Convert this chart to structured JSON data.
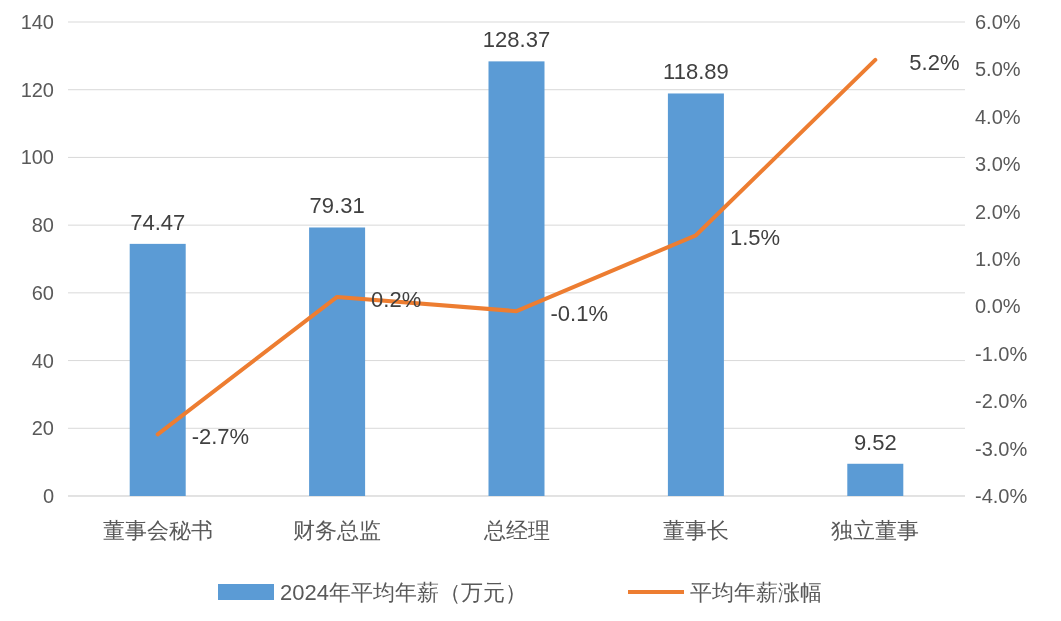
{
  "chart_data": {
    "type": "bar",
    "categories": [
      "董事会秘书",
      "财务总监",
      "总经理",
      "董事长",
      "独立董事"
    ],
    "series": [
      {
        "name": "2024年平均年薪（万元）",
        "color": "#5b9bd5",
        "values": [
          74.47,
          79.31,
          128.37,
          118.89,
          9.52
        ],
        "value_labels": [
          "74.47",
          "79.31",
          "128.37",
          "118.89",
          "9.52"
        ]
      },
      {
        "name": "平均年薪涨幅",
        "type": "line",
        "axis": "y2",
        "color": "#ed7d31",
        "values": [
          -2.7,
          0.2,
          -0.1,
          1.5,
          5.2
        ],
        "value_labels": [
          "-2.7%",
          "0.2%",
          "-0.1%",
          "1.5%",
          "5.2%"
        ]
      }
    ],
    "ylim": [
      0,
      140
    ],
    "yticks": [
      0,
      20,
      40,
      60,
      80,
      100,
      120,
      140
    ],
    "y2lim": [
      -4,
      6
    ],
    "y2ticks": [
      {
        "value": -4,
        "label": "-4.0%"
      },
      {
        "value": -3,
        "label": "-3.0%"
      },
      {
        "value": -2,
        "label": "-2.0%"
      },
      {
        "value": -1,
        "label": "-1.0%"
      },
      {
        "value": 0,
        "label": "0.0%"
      },
      {
        "value": 1,
        "label": "1.0%"
      },
      {
        "value": 2,
        "label": "2.0%"
      },
      {
        "value": 3,
        "label": "3.0%"
      },
      {
        "value": 4,
        "label": "4.0%"
      },
      {
        "value": 5,
        "label": "5.0%"
      },
      {
        "value": 6,
        "label": "6.0%"
      }
    ],
    "grid": "y",
    "legend": "bottom"
  }
}
